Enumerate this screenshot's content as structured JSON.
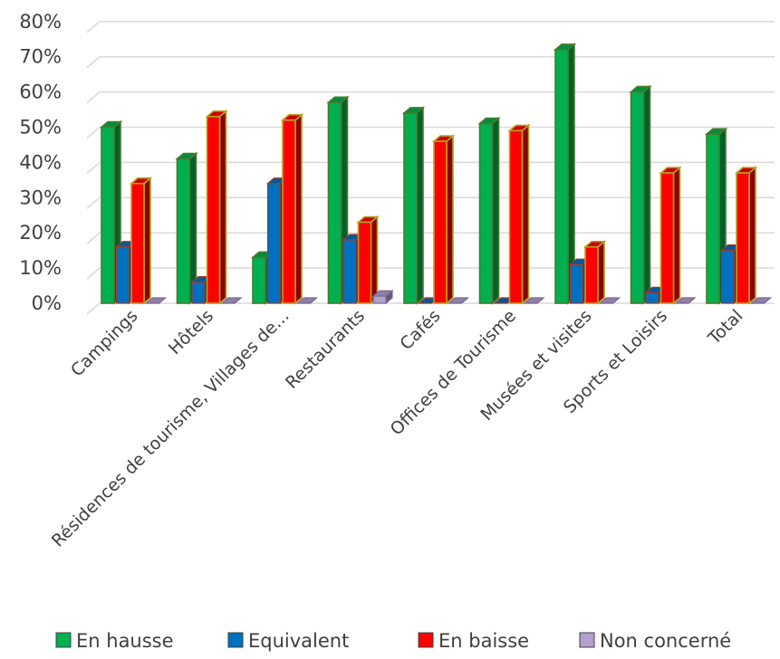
{
  "chart_data": {
    "type": "bar",
    "categories": [
      "Campings",
      "Hôtels",
      "Résidences de tourisme, Villages de...",
      "Restaurants",
      "Cafés",
      "Offices de Tourisme",
      "Musées et visites",
      "Sports et Loisirs",
      "Total"
    ],
    "series": [
      {
        "name": "En hausse",
        "color": "#00b050",
        "values": [
          50,
          41,
          13,
          57,
          54,
          51,
          72,
          60,
          48
        ]
      },
      {
        "name": "Equivalent",
        "color": "#0070c0",
        "values": [
          16,
          6,
          34,
          18,
          0,
          0,
          11,
          3,
          15
        ]
      },
      {
        "name": "En baisse",
        "color": "#ff0000",
        "values": [
          34,
          53,
          52,
          23,
          46,
          49,
          16,
          37,
          37
        ]
      },
      {
        "name": "Non concerné",
        "color": "#b4a0cc",
        "values": [
          0,
          0,
          0,
          2,
          0,
          0,
          0,
          0,
          0
        ]
      }
    ],
    "yticks": [
      "0%",
      "10%",
      "20%",
      "30%",
      "40%",
      "50%",
      "60%",
      "70%",
      "80%"
    ],
    "ylim": [
      0,
      80
    ],
    "unit": "%",
    "grid": true,
    "legend_position": "bottom",
    "style": "3d-clustered-column"
  }
}
